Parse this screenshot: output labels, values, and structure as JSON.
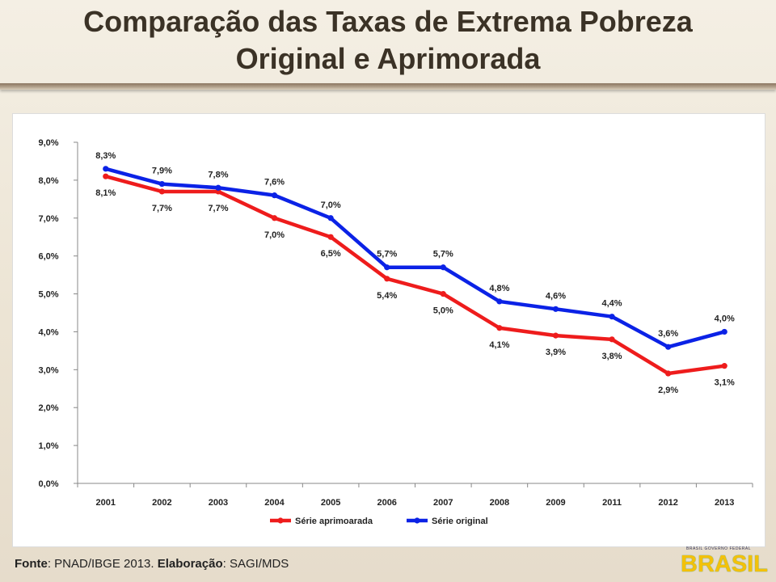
{
  "header": {
    "title_line1": "Comparação das Taxas de Extrema Pobreza",
    "title_line2": "Original e Aprimorada"
  },
  "footer": {
    "source_label": "Fonte",
    "source_value": ": PNAD/IBGE 2013. ",
    "author_label": "Elaboração",
    "author_value": ": SAGI/MDS"
  },
  "logo": {
    "caption": "BRASIL GOVERNO FEDERAL",
    "word": "BRASIL"
  },
  "chart_data": {
    "type": "line",
    "title": "",
    "xlabel": "",
    "ylabel": "",
    "ylim": [
      0,
      9
    ],
    "yticks": [
      "0,0%",
      "1,0%",
      "2,0%",
      "3,0%",
      "4,0%",
      "5,0%",
      "6,0%",
      "7,0%",
      "8,0%",
      "9,0%"
    ],
    "categories": [
      "2001",
      "2002",
      "2003",
      "2004",
      "2005",
      "2006",
      "2007",
      "2008",
      "2009",
      "2011",
      "2012",
      "2013"
    ],
    "grid": false,
    "legend_position": "bottom",
    "series": [
      {
        "name": "Série aprimoarada",
        "color": "#ee1c1c",
        "values": [
          8.1,
          7.7,
          7.7,
          7.0,
          6.5,
          5.4,
          5.0,
          4.1,
          3.9,
          3.8,
          2.9,
          3.1
        ],
        "labels": [
          "8,1%",
          "7,7%",
          "7,7%",
          "7,0%",
          "6,5%",
          "5,4%",
          "5,0%",
          "4,1%",
          "3,9%",
          "3,8%",
          "2,9%",
          "3,1%"
        ]
      },
      {
        "name": "Série original",
        "color": "#0b22e6",
        "values": [
          8.3,
          7.9,
          7.8,
          7.6,
          7.0,
          5.7,
          5.7,
          4.8,
          4.6,
          4.4,
          3.6,
          4.0
        ],
        "labels": [
          "8,3%",
          "7,9%",
          "7,8%",
          "7,6%",
          "7,0%",
          "5,7%",
          "5,7%",
          "4,8%",
          "4,6%",
          "4,4%",
          "3,6%",
          "4,0%"
        ]
      }
    ]
  }
}
